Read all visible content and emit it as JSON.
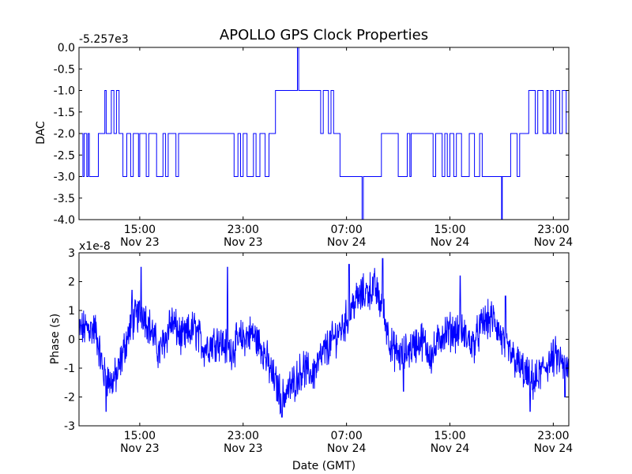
{
  "chart_data": [
    {
      "type": "line",
      "title": "APOLLO GPS Clock Properties",
      "xlabel": "",
      "ylabel": "DAC",
      "offset_label": "-5.257e3",
      "xlim": [
        10.3,
        48.2
      ],
      "ylim": [
        -4.0,
        0.0
      ],
      "yticks": [
        0.0,
        -0.5,
        -1.0,
        -1.5,
        -2.0,
        -2.5,
        -3.0,
        -3.5,
        -4.0
      ],
      "ytick_labels": [
        "0.0",
        "-0.5",
        "-1.0",
        "-1.5",
        "-2.0",
        "-2.5",
        "-3.0",
        "-3.5",
        "-4.0"
      ],
      "xticks": [
        {
          "x": 15,
          "time": "15:00",
          "date": "Nov 23"
        },
        {
          "x": 23,
          "time": "23:00",
          "date": "Nov 23"
        },
        {
          "x": 31,
          "time": "07:00",
          "date": "Nov 24"
        },
        {
          "x": 39,
          "time": "15:00",
          "date": "Nov 24"
        },
        {
          "x": 47,
          "time": "23:00",
          "date": "Nov 24"
        }
      ],
      "series": [
        {
          "name": "DAC",
          "color": "#0000ff",
          "points": [
            [
              10.3,
              -2.0
            ],
            [
              10.6,
              -2.0
            ],
            [
              10.6,
              -3.0
            ],
            [
              10.7,
              -3.0
            ],
            [
              10.7,
              -2.0
            ],
            [
              10.9,
              -2.0
            ],
            [
              10.9,
              -3.0
            ],
            [
              11.0,
              -3.0
            ],
            [
              11.0,
              -2.0
            ],
            [
              11.1,
              -2.0
            ],
            [
              11.1,
              -3.0
            ],
            [
              11.8,
              -3.0
            ],
            [
              11.8,
              -2.0
            ],
            [
              12.3,
              -2.0
            ],
            [
              12.3,
              -1.0
            ],
            [
              12.4,
              -1.0
            ],
            [
              12.4,
              -2.0
            ],
            [
              12.8,
              -2.0
            ],
            [
              12.8,
              -1.0
            ],
            [
              13.0,
              -1.0
            ],
            [
              13.0,
              -2.0
            ],
            [
              13.2,
              -2.0
            ],
            [
              13.2,
              -1.0
            ],
            [
              13.4,
              -1.0
            ],
            [
              13.4,
              -2.0
            ],
            [
              13.7,
              -2.0
            ],
            [
              13.7,
              -3.0
            ],
            [
              14.0,
              -3.0
            ],
            [
              14.0,
              -2.0
            ],
            [
              14.3,
              -2.0
            ],
            [
              14.3,
              -3.0
            ],
            [
              14.5,
              -3.0
            ],
            [
              14.5,
              -2.0
            ],
            [
              14.9,
              -2.0
            ],
            [
              14.9,
              -3.0
            ],
            [
              15.0,
              -3.0
            ],
            [
              15.0,
              -2.0
            ],
            [
              15.5,
              -2.0
            ],
            [
              15.5,
              -3.0
            ],
            [
              15.7,
              -3.0
            ],
            [
              15.7,
              -2.0
            ],
            [
              16.3,
              -2.0
            ],
            [
              16.3,
              -3.0
            ],
            [
              16.8,
              -3.0
            ],
            [
              16.8,
              -2.0
            ],
            [
              17.0,
              -2.0
            ],
            [
              17.0,
              -3.0
            ],
            [
              17.2,
              -3.0
            ],
            [
              17.2,
              -2.0
            ],
            [
              17.8,
              -2.0
            ],
            [
              17.8,
              -3.0
            ],
            [
              18.0,
              -3.0
            ],
            [
              18.0,
              -2.0
            ],
            [
              22.3,
              -2.0
            ],
            [
              22.3,
              -3.0
            ],
            [
              22.6,
              -3.0
            ],
            [
              22.6,
              -2.0
            ],
            [
              22.8,
              -2.0
            ],
            [
              22.8,
              -3.0
            ],
            [
              23.0,
              -3.0
            ],
            [
              23.0,
              -2.0
            ],
            [
              23.3,
              -2.0
            ],
            [
              23.3,
              -3.0
            ],
            [
              23.8,
              -3.0
            ],
            [
              23.8,
              -2.0
            ],
            [
              24.0,
              -2.0
            ],
            [
              24.0,
              -3.0
            ],
            [
              24.3,
              -3.0
            ],
            [
              24.3,
              -2.0
            ],
            [
              24.7,
              -2.0
            ],
            [
              24.7,
              -3.0
            ],
            [
              25.0,
              -3.0
            ],
            [
              25.0,
              -2.0
            ],
            [
              25.5,
              -2.0
            ],
            [
              25.5,
              -1.0
            ],
            [
              27.2,
              -1.0
            ],
            [
              27.2,
              -0.0
            ],
            [
              27.3,
              -0.0
            ],
            [
              27.3,
              -1.0
            ],
            [
              29.0,
              -1.0
            ],
            [
              29.0,
              -2.0
            ],
            [
              29.2,
              -2.0
            ],
            [
              29.2,
              -1.0
            ],
            [
              29.6,
              -1.0
            ],
            [
              29.6,
              -2.0
            ],
            [
              29.8,
              -2.0
            ],
            [
              29.8,
              -1.0
            ],
            [
              30.0,
              -1.0
            ],
            [
              30.0,
              -2.0
            ],
            [
              30.5,
              -2.0
            ],
            [
              30.5,
              -3.0
            ],
            [
              32.2,
              -3.0
            ],
            [
              32.2,
              -4.0
            ],
            [
              32.3,
              -4.0
            ],
            [
              32.3,
              -3.0
            ],
            [
              33.7,
              -3.0
            ],
            [
              33.7,
              -2.0
            ],
            [
              35.0,
              -2.0
            ],
            [
              35.0,
              -3.0
            ],
            [
              35.7,
              -3.0
            ],
            [
              35.7,
              -2.0
            ],
            [
              35.9,
              -2.0
            ],
            [
              35.9,
              -3.0
            ],
            [
              36.0,
              -3.0
            ],
            [
              36.0,
              -2.0
            ],
            [
              37.7,
              -2.0
            ],
            [
              37.7,
              -3.0
            ],
            [
              37.9,
              -3.0
            ],
            [
              37.9,
              -2.0
            ],
            [
              38.4,
              -2.0
            ],
            [
              38.4,
              -3.0
            ],
            [
              38.6,
              -3.0
            ],
            [
              38.6,
              -2.0
            ],
            [
              38.8,
              -2.0
            ],
            [
              38.8,
              -3.0
            ],
            [
              39.0,
              -3.0
            ],
            [
              39.0,
              -2.0
            ],
            [
              39.3,
              -2.0
            ],
            [
              39.3,
              -3.0
            ],
            [
              39.5,
              -3.0
            ],
            [
              39.5,
              -2.0
            ],
            [
              39.9,
              -2.0
            ],
            [
              39.9,
              -3.0
            ],
            [
              40.5,
              -3.0
            ],
            [
              40.5,
              -2.0
            ],
            [
              40.9,
              -2.0
            ],
            [
              40.9,
              -3.0
            ],
            [
              41.3,
              -3.0
            ],
            [
              41.3,
              -2.0
            ],
            [
              41.5,
              -2.0
            ],
            [
              41.5,
              -3.0
            ],
            [
              43.0,
              -3.0
            ],
            [
              43.0,
              -4.0
            ],
            [
              43.05,
              -4.0
            ],
            [
              43.05,
              -3.0
            ],
            [
              43.7,
              -3.0
            ],
            [
              43.7,
              -2.0
            ],
            [
              44.2,
              -2.0
            ],
            [
              44.2,
              -3.0
            ],
            [
              44.4,
              -3.0
            ],
            [
              44.4,
              -2.0
            ],
            [
              45.1,
              -2.0
            ],
            [
              45.1,
              -1.0
            ],
            [
              45.6,
              -1.0
            ],
            [
              45.6,
              -2.0
            ],
            [
              45.8,
              -2.0
            ],
            [
              45.8,
              -1.0
            ],
            [
              46.2,
              -1.0
            ],
            [
              46.2,
              -2.0
            ],
            [
              46.5,
              -2.0
            ],
            [
              46.5,
              -1.0
            ],
            [
              46.6,
              -1.0
            ],
            [
              46.6,
              -2.0
            ],
            [
              46.8,
              -2.0
            ],
            [
              46.8,
              -1.0
            ],
            [
              47.0,
              -1.0
            ],
            [
              47.0,
              -2.0
            ],
            [
              47.2,
              -2.0
            ],
            [
              47.2,
              -1.0
            ],
            [
              47.5,
              -1.0
            ],
            [
              47.5,
              -2.0
            ],
            [
              47.7,
              -2.0
            ],
            [
              47.7,
              -1.0
            ],
            [
              48.0,
              -1.0
            ],
            [
              48.0,
              -2.0
            ],
            [
              48.2,
              -2.0
            ]
          ]
        }
      ]
    },
    {
      "type": "line",
      "title": "",
      "xlabel": "Date (GMT)",
      "ylabel": "Phase (s)",
      "offset_label": "x1e-8",
      "xlim": [
        10.3,
        48.2
      ],
      "ylim": [
        -3,
        3
      ],
      "yticks": [
        3,
        2,
        1,
        0,
        -1,
        -2,
        -3
      ],
      "ytick_labels": [
        "3",
        "2",
        "1",
        "0",
        "-1",
        "-2",
        "-3"
      ],
      "xticks": [
        {
          "x": 15,
          "time": "15:00",
          "date": "Nov 23"
        },
        {
          "x": 23,
          "time": "23:00",
          "date": "Nov 23"
        },
        {
          "x": 31,
          "time": "07:00",
          "date": "Nov 24"
        },
        {
          "x": 39,
          "time": "15:00",
          "date": "Nov 24"
        },
        {
          "x": 47,
          "time": "23:00",
          "date": "Nov 24"
        }
      ],
      "series": [
        {
          "name": "Phase",
          "color": "#0000ff",
          "trend": [
            [
              10.3,
              0.3
            ],
            [
              11.0,
              0.4
            ],
            [
              11.6,
              0.3
            ],
            [
              12.2,
              -1.2
            ],
            [
              12.8,
              -1.5
            ],
            [
              13.3,
              -1.2
            ],
            [
              13.8,
              -0.3
            ],
            [
              14.4,
              0.6
            ],
            [
              15.2,
              1.0
            ],
            [
              16.0,
              0.2
            ],
            [
              16.5,
              -0.5
            ],
            [
              17.5,
              0.6
            ],
            [
              18.3,
              0.0
            ],
            [
              19.2,
              0.4
            ],
            [
              20.0,
              -0.3
            ],
            [
              21.0,
              0.0
            ],
            [
              22.0,
              -0.4
            ],
            [
              22.8,
              0.0
            ],
            [
              23.7,
              0.2
            ],
            [
              24.5,
              -0.3
            ],
            [
              25.2,
              -1.2
            ],
            [
              26.0,
              -2.0
            ],
            [
              26.8,
              -1.6
            ],
            [
              27.6,
              -1.0
            ],
            [
              28.4,
              -1.2
            ],
            [
              29.2,
              -0.5
            ],
            [
              30.0,
              0.0
            ],
            [
              30.8,
              0.5
            ],
            [
              31.6,
              1.3
            ],
            [
              32.4,
              1.6
            ],
            [
              33.2,
              1.8
            ],
            [
              33.8,
              1.0
            ],
            [
              34.5,
              -0.3
            ],
            [
              35.2,
              -0.6
            ],
            [
              36.0,
              -0.3
            ],
            [
              36.8,
              0.0
            ],
            [
              37.6,
              -0.6
            ],
            [
              38.4,
              0.2
            ],
            [
              39.2,
              0.3
            ],
            [
              40.0,
              0.2
            ],
            [
              40.8,
              -0.2
            ],
            [
              41.6,
              0.6
            ],
            [
              42.4,
              0.7
            ],
            [
              43.2,
              -0.2
            ],
            [
              44.0,
              -0.7
            ],
            [
              44.8,
              -1.2
            ],
            [
              45.6,
              -1.5
            ],
            [
              46.4,
              -0.9
            ],
            [
              47.2,
              -0.6
            ],
            [
              48.2,
              -1.1
            ]
          ],
          "spikes": [
            [
              15.1,
              2.5
            ],
            [
              21.8,
              2.5
            ],
            [
              31.2,
              2.6
            ],
            [
              33.8,
              2.8
            ],
            [
              39.8,
              2.2
            ],
            [
              14.4,
              1.7
            ],
            [
              17.3,
              1.0
            ],
            [
              28.0,
              -1.2
            ],
            [
              26.0,
              -2.7
            ],
            [
              12.4,
              -2.5
            ],
            [
              35.4,
              -1.8
            ],
            [
              45.2,
              -2.5
            ],
            [
              47.9,
              -2.0
            ],
            [
              43.3,
              1.5
            ],
            [
              11.2,
              0.6
            ]
          ]
        }
      ]
    }
  ]
}
